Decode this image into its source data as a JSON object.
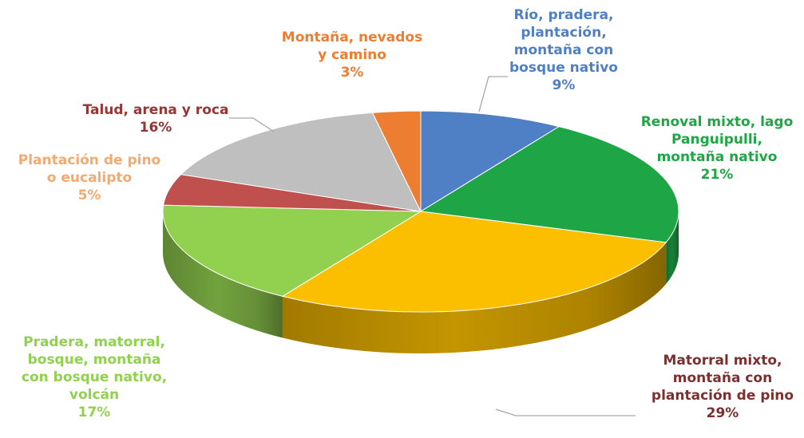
{
  "chart_data": {
    "type": "pie",
    "title": "",
    "start_at_top": true,
    "clockwise": true,
    "slices": [
      {
        "label": "Río, pradera, plantación, montaña con bosque nativo",
        "value": 9,
        "display": "9%",
        "color": "#4f7fc4"
      },
      {
        "label": "Renoval mixto, lago Panguipulli, montaña nativo",
        "value": 21,
        "display": "21%",
        "color": "#1ea646"
      },
      {
        "label": "Matorral mixto, montaña con plantación de pino",
        "value": 29,
        "display": "29%",
        "color": "#fbbf00"
      },
      {
        "label": "Pradera, matorral, bosque, montaña con bosque nativo, volcán",
        "value": 17,
        "display": "17%",
        "color": "#92d050"
      },
      {
        "label": "Plantación de pino o eucalipto",
        "value": 5,
        "display": "5%",
        "color": "#c0504d"
      },
      {
        "label": "Talud, arena y roca",
        "value": 16,
        "display": "16%",
        "color": "#bfbfbf"
      },
      {
        "label": "Montaña, nevados y camino",
        "value": 3,
        "display": "3%",
        "color": "#ed7d31"
      }
    ],
    "label_colors": [
      "#4f7fc4",
      "#1ea646",
      "#7b2f2f",
      "#92d050",
      "#f4a96e",
      "#943634",
      "#ed7d31"
    ],
    "label_lines": [
      [
        "Río, pradera,",
        "plantación,",
        "montaña con",
        "bosque nativo",
        "9%"
      ],
      [
        "Renoval mixto, lago",
        "Panguipulli,",
        "montaña nativo",
        "21%"
      ],
      [
        "Matorral mixto,",
        "montaña con",
        "plantación de pino",
        "29%"
      ],
      [
        "Pradera, matorral,",
        "bosque, montaña",
        "con bosque nativo,",
        "volcán",
        "17%"
      ],
      [
        "Plantación de pino",
        "o eucalipto",
        "5%"
      ],
      [
        "Talud, arena y roca",
        "16%"
      ],
      [
        "Montaña, nevados",
        "y camino",
        "3%"
      ]
    ]
  }
}
